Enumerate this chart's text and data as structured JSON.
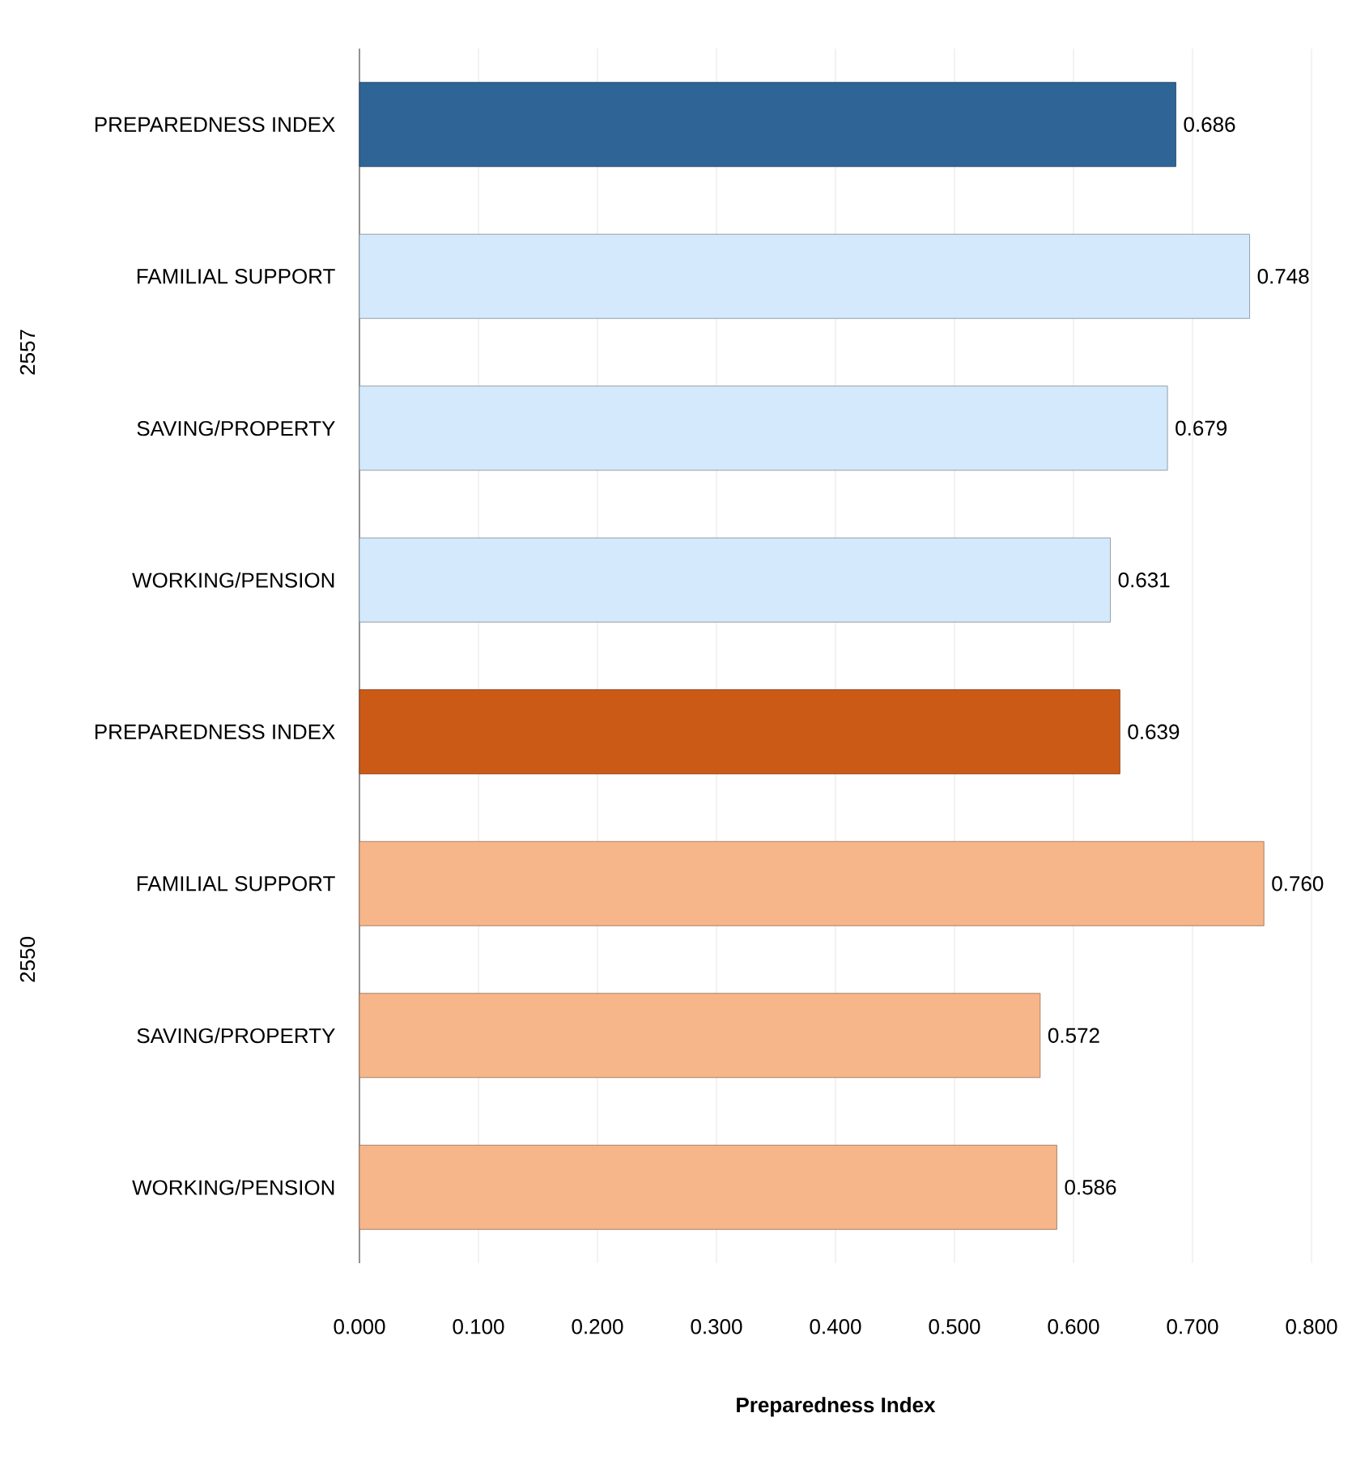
{
  "chart_data": {
    "type": "bar",
    "orientation": "horizontal",
    "xlabel": "Preparedness Index",
    "categories": [
      "PREPAREDNESS INDEX",
      "FAMILIAL SUPPORT",
      "SAVING/PROPERTY",
      "WORKING/PENSION",
      "PREPAREDNESS INDEX",
      "FAMILIAL SUPPORT",
      "SAVING/PROPERTY",
      "WORKING/PENSION"
    ],
    "values": [
      0.686,
      0.748,
      0.679,
      0.631,
      0.639,
      0.76,
      0.572,
      0.586
    ],
    "value_labels": [
      "0.686",
      "0.748",
      "0.679",
      "0.631",
      "0.639",
      "0.760",
      "0.572",
      "0.586"
    ],
    "colors": [
      "#2f6497",
      "#d4e9fb",
      "#d4e9fb",
      "#d4e9fb",
      "#cc5a17",
      "#f7b68a",
      "#f7b68a",
      "#f7b68a"
    ],
    "xlim": [
      0,
      0.8
    ],
    "xticks": [
      {
        "value": 0,
        "label": "0.000"
      },
      {
        "value": 0.1,
        "label": "0.100"
      },
      {
        "value": 0.2,
        "label": "0.200"
      },
      {
        "value": 0.3,
        "label": "0.300"
      },
      {
        "value": 0.4,
        "label": "0.400"
      },
      {
        "value": 0.5,
        "label": "0.500"
      },
      {
        "value": 0.6,
        "label": "0.600"
      },
      {
        "value": 0.7,
        "label": "0.700"
      },
      {
        "value": 0.8,
        "label": "0.800"
      }
    ],
    "grid": "x",
    "annotations": [
      "2557",
      "2550"
    ]
  }
}
